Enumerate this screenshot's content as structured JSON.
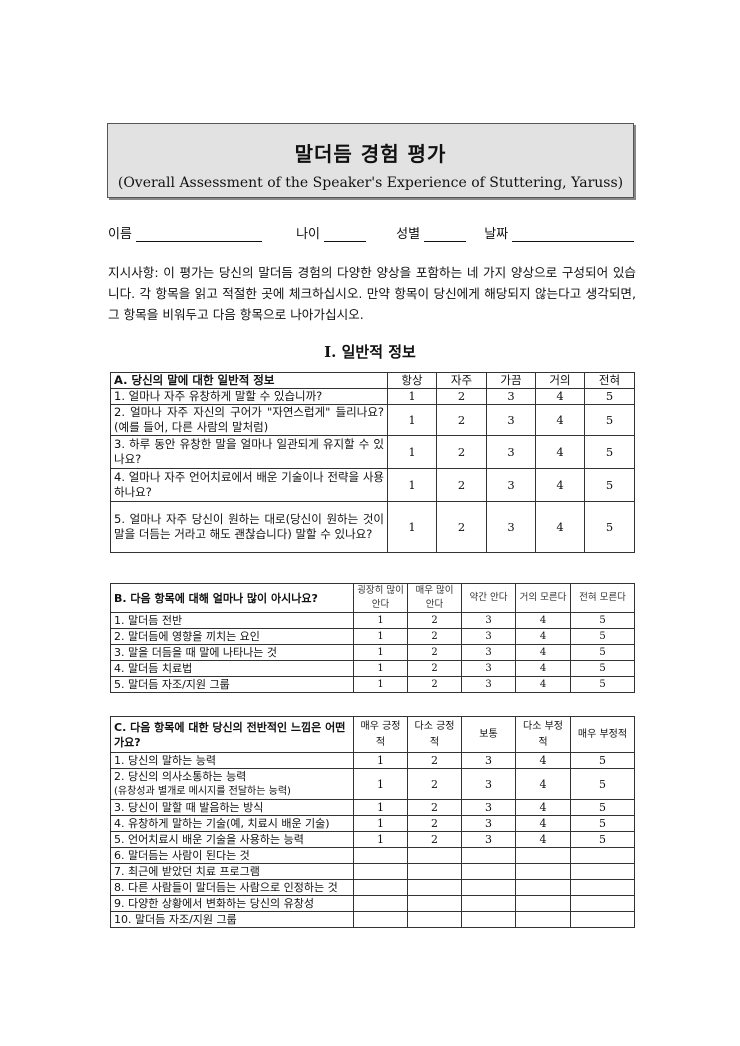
{
  "title": "말더듬 경험 평가",
  "subtitle": "(Overall Assessment of the Speaker's Experience of Stuttering, Yaruss)",
  "fields": [
    {
      "label": "이름"
    },
    {
      "label": "나이"
    },
    {
      "label": "성별"
    },
    {
      "label": "날짜"
    }
  ],
  "instructions": "지시사항: 이 평가는 당신의 말더듬 경험의 다양한 양상을 포함하는 네 가지 양상으로 구성되어 있습니다. 각 항목을 읽고 적절한 곳에 체크하십시오. 만약 항목이 당신에게 해당되지 않는다고 생각되면, 그 항목을 비워두고 다음 항목으로 나아가십시오.",
  "section_title": "I. 일반적 정보",
  "tables": [
    {
      "id": "tA",
      "heading": "A. 당신의 말에 대한 일반적 정보",
      "columns": [
        "항상",
        "자주",
        "가끔",
        "거의",
        "전혀"
      ],
      "rows": [
        {
          "text": "1. 얼마나 자주 유창하게 말할 수 있습니까?",
          "values": [
            "1",
            "2",
            "3",
            "4",
            "5"
          ]
        },
        {
          "text": "2. 얼마나 자주 자신의 구어가 \"자연스럽게\" 들리나요? (예를 들어, 다른 사람의 말처럼)",
          "values": [
            "1",
            "2",
            "3",
            "4",
            "5"
          ]
        },
        {
          "text": "3. 하루 동안 유창한 말을 얼마나 일관되게 유지할 수 있나요?",
          "values": [
            "1",
            "2",
            "3",
            "4",
            "5"
          ]
        },
        {
          "text": "4. 얼마나 자주 언어치료에서 배운 기술이나 전략을 사용하나요?",
          "values": [
            "1",
            "2",
            "3",
            "4",
            "5"
          ]
        },
        {
          "text": "5. 얼마나 자주 당신이 원하는 대로(당신이 원하는 것이 말을 더듬는 거라고 해도 괜찮습니다) 말할 수 있나요?",
          "values": [
            "1",
            "2",
            "3",
            "4",
            "5"
          ]
        }
      ]
    },
    {
      "id": "tB",
      "heading": "B. 다음 항목에 대해 얼마나 많이 아시나요?",
      "columns": [
        "굉장히 많이 안다",
        "매우 많이 안다",
        "약간 안다",
        "거의 모른다",
        "전혀 모른다"
      ],
      "rows": [
        {
          "text": "1. 말더듬 전반",
          "values": [
            "1",
            "2",
            "3",
            "4",
            "5"
          ]
        },
        {
          "text": "2. 말더듬에 영향을 끼치는 요인",
          "values": [
            "1",
            "2",
            "3",
            "4",
            "5"
          ]
        },
        {
          "text": "3. 말을 더듬을 때 말에 나타나는 것",
          "values": [
            "1",
            "2",
            "3",
            "4",
            "5"
          ]
        },
        {
          "text": "4. 말더듬 치료법",
          "values": [
            "1",
            "2",
            "3",
            "4",
            "5"
          ]
        },
        {
          "text": "5. 말더듬 자조/지원 그룹",
          "values": [
            "1",
            "2",
            "3",
            "4",
            "5"
          ]
        }
      ]
    },
    {
      "id": "tC",
      "heading": "C. 다음 항목에 대한 당신의 전반적인 느낌은 어떤가요?",
      "columns": [
        "매우 긍정적",
        "다소 긍정적",
        "보통",
        "다소 부정적",
        "매우 부정적"
      ],
      "rows": [
        {
          "text": "1. 당신의 말하는 능력",
          "values": [
            "1",
            "2",
            "3",
            "4",
            "5"
          ]
        },
        {
          "text": "2. 당신의 의사소통하는 능력",
          "note": "(유창성과 별개로 메시지를 전달하는 능력)",
          "values": [
            "1",
            "2",
            "3",
            "4",
            "5"
          ]
        },
        {
          "text": "3. 당신이 말할 때 발음하는 방식",
          "values": [
            "1",
            "2",
            "3",
            "4",
            "5"
          ]
        },
        {
          "text": "4. 유창하게 말하는 기술(예, 치료시 배운 기술)",
          "values": [
            "1",
            "2",
            "3",
            "4",
            "5"
          ]
        },
        {
          "text": "5. 언어치료시 배운 기술을 사용하는 능력",
          "values": [
            "1",
            "2",
            "3",
            "4",
            "5"
          ]
        },
        {
          "text": "6. 말더듬는 사람이 된다는 것",
          "values": [
            "",
            "",
            "",
            "",
            ""
          ]
        },
        {
          "text": "7. 최근에 받았던 치료 프로그램",
          "values": [
            "",
            "",
            "",
            "",
            ""
          ]
        },
        {
          "text": "8. 다른 사람들이 말더듬는 사람으로 인정하는 것",
          "values": [
            "",
            "",
            "",
            "",
            ""
          ]
        },
        {
          "text": "9. 다양한 상황에서 변화하는 당신의 유창성",
          "values": [
            "",
            "",
            "",
            "",
            ""
          ]
        },
        {
          "text": "10. 말더듬 자조/지원 그룹",
          "values": [
            "",
            "",
            "",
            "",
            ""
          ]
        }
      ]
    }
  ]
}
